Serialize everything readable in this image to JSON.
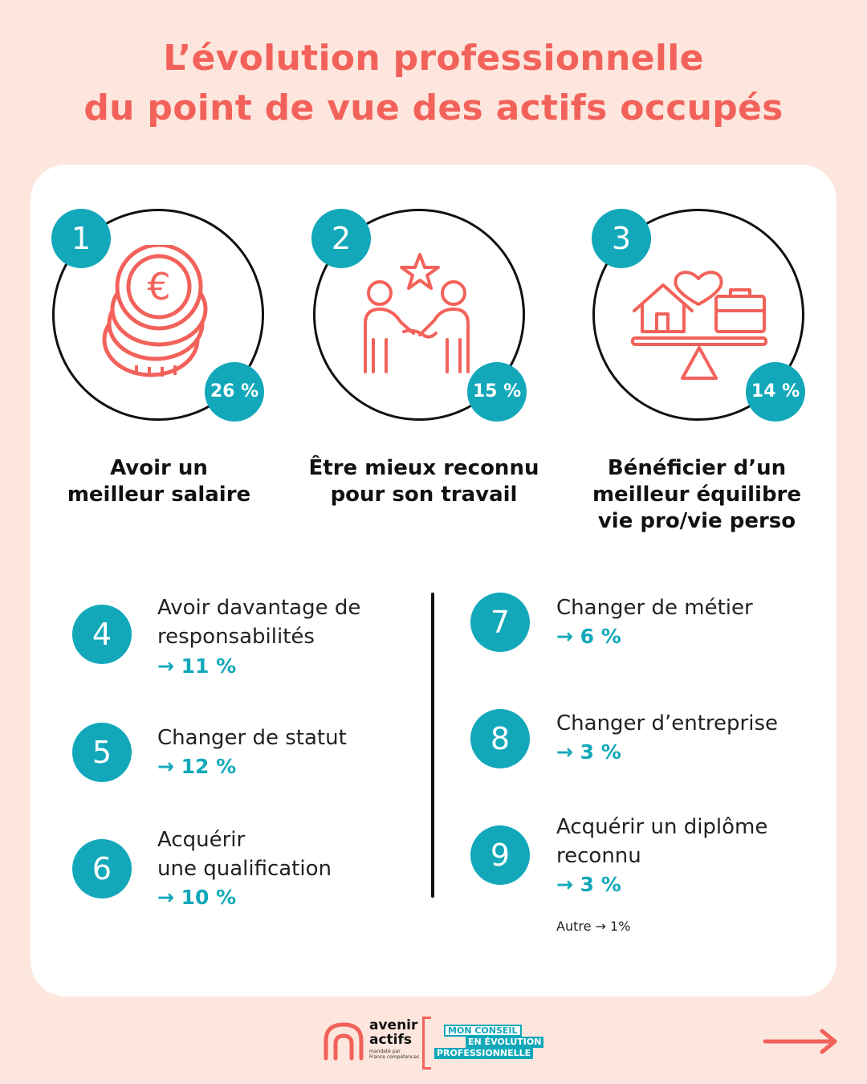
{
  "title": {
    "line1": "L’évolution professionnelle",
    "line2": "du point de vue des actifs occupés"
  },
  "top_items": [
    {
      "number": "1",
      "percent": "26 %",
      "label_line1": "Avoir un",
      "label_line2": "meilleur salaire",
      "label_line3": "",
      "icon": "euro-coins-icon"
    },
    {
      "number": "2",
      "percent": "15 %",
      "label_line1": "Être mieux reconnu",
      "label_line2": "pour son travail",
      "label_line3": "",
      "icon": "handshake-star-icon"
    },
    {
      "number": "3",
      "percent": "14 %",
      "label_line1": "Bénéficier d’un",
      "label_line2": "meilleur équilibre",
      "label_line3": "vie pro/vie perso",
      "icon": "balance-home-work-icon"
    }
  ],
  "list_items": [
    {
      "number": "4",
      "line1": "Avoir davantage de",
      "line2": "responsabilités",
      "percent": "→ 11 %"
    },
    {
      "number": "5",
      "line1": "Changer de statut",
      "line2": "",
      "percent": "→ 12 %"
    },
    {
      "number": "6",
      "line1": "Acquérir",
      "line2": "une qualification",
      "percent": "→ 10 %"
    },
    {
      "number": "7",
      "line1": "Changer de métier",
      "line2": "",
      "percent": "→ 6 %"
    },
    {
      "number": "8",
      "line1": "Changer d’entreprise",
      "line2": "",
      "percent": "→ 3 %"
    },
    {
      "number": "9",
      "line1": "Acquérir un diplôme",
      "line2": "reconnu",
      "percent": "→ 3 %"
    }
  ],
  "other": "Autre → 1%",
  "footer": {
    "logo_line1": "avenir",
    "logo_line2": "actifs",
    "logo_sub1": "mandaté par",
    "logo_sub2": "France compétences",
    "tag1": "MON CONSEIL",
    "tag2": "EN ÉVOLUTION",
    "tag3": "PROFESSIONNELLE"
  },
  "colors": {
    "accent": "#f2625a",
    "teal": "#12a8ba",
    "background": "#fde6dd"
  }
}
